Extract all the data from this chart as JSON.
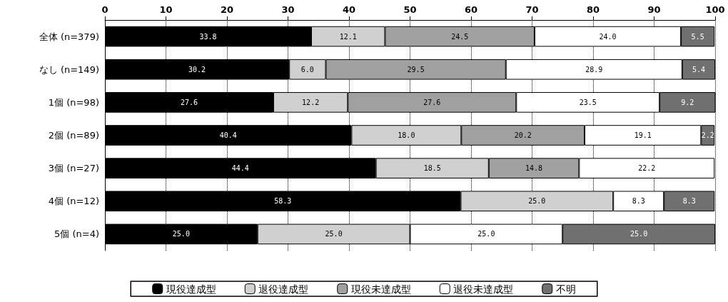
{
  "chart_data": {
    "type": "bar",
    "orientation": "horizontal",
    "stacked": true,
    "categories": [
      "全体 (n=379)",
      "なし (n=149)",
      "1個 (n=98)",
      "2個 (n=89)",
      "3個 (n=27)",
      "4個 (n=12)",
      "5個 (n=4)"
    ],
    "series": [
      {
        "name": "現役達成型",
        "color": "#000000",
        "values": [
          33.8,
          30.2,
          27.6,
          40.4,
          44.4,
          58.3,
          25.0
        ],
        "value_labels": [
          "33.8",
          "30.2",
          "27.6",
          "40.4",
          "44.4",
          "58.3",
          "25.0"
        ]
      },
      {
        "name": "退役達成型",
        "color": "#d0d0d0",
        "values": [
          12.1,
          6.0,
          12.2,
          18.0,
          18.5,
          25.0,
          25.0
        ],
        "value_labels": [
          "12.1",
          "6.0",
          "12.2",
          "18.0",
          "18.5",
          "25.0",
          "25.0"
        ]
      },
      {
        "name": "現役未達成型",
        "color": "#a0a0a0",
        "values": [
          24.5,
          29.5,
          27.6,
          20.2,
          14.8,
          null,
          null
        ],
        "value_labels": [
          "24.5",
          "29.5",
          "27.6",
          "20.2",
          "14.8",
          null,
          null
        ]
      },
      {
        "name": "退役未達成型",
        "color": "#ffffff",
        "values": [
          24.0,
          28.9,
          23.5,
          19.1,
          22.2,
          8.3,
          25.0
        ],
        "value_labels": [
          "24.0",
          "28.9",
          "23.5",
          "19.1",
          "22.2",
          "8.3",
          "25.0"
        ]
      },
      {
        "name": "不明",
        "color": "#707070",
        "values": [
          5.5,
          5.4,
          9.2,
          2.2,
          null,
          8.3,
          25.0
        ],
        "value_labels": [
          "5.5",
          "5.4",
          "9.2",
          "2.2",
          null,
          "8.3",
          "25.0"
        ]
      }
    ],
    "xlim": [
      0,
      100
    ],
    "xticks": [
      0,
      10,
      20,
      30,
      40,
      50,
      60,
      70,
      80,
      90,
      100
    ],
    "grid": "x",
    "legend": "bottom"
  }
}
